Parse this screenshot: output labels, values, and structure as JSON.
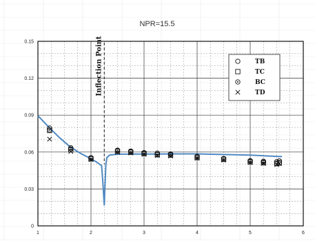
{
  "chart_data": {
    "type": "scatter",
    "title": "NPR=15.5",
    "xlim": [
      1,
      6
    ],
    "ylim": [
      0,
      0.15
    ],
    "x_ticks": [
      "1",
      "2",
      "3",
      "4",
      "5",
      "6"
    ],
    "y_ticks": [
      "0",
      "0.03",
      "0.06",
      "0.09",
      "0.12",
      "0.15"
    ],
    "grid": true,
    "legend_position": "top-right",
    "annotation": {
      "label": "Inflection Point",
      "x": 2.25
    },
    "series": [
      {
        "name": "TB",
        "marker": "circle-open",
        "x": [
          1.22,
          1.62,
          2.0,
          2.5,
          2.75,
          3.0,
          3.25,
          3.5,
          4.0,
          4.5,
          5.0,
          5.25,
          5.5,
          5.55
        ],
        "y": [
          0.0795,
          0.0635,
          0.0555,
          0.0615,
          0.0608,
          0.0595,
          0.0592,
          0.0585,
          0.0565,
          0.0548,
          0.053,
          0.0525,
          0.0522,
          0.0528
        ]
      },
      {
        "name": "TC",
        "marker": "square-open",
        "x": [
          1.22,
          1.62,
          2.0,
          2.5,
          2.75,
          3.0,
          3.25,
          3.5,
          4.0,
          4.5,
          5.0,
          5.25,
          5.5,
          5.55
        ],
        "y": [
          0.0775,
          0.0618,
          0.0545,
          0.0605,
          0.0598,
          0.0588,
          0.0578,
          0.0575,
          0.0555,
          0.054,
          0.052,
          0.0512,
          0.0508,
          0.0515
        ]
      },
      {
        "name": "BC",
        "marker": "circle-dot",
        "x": [
          1.22,
          1.62,
          2.0,
          2.5,
          2.75,
          3.0,
          3.25,
          3.5,
          4.0,
          4.5,
          5.0,
          5.25,
          5.5,
          5.55
        ],
        "y": [
          0.078,
          0.0625,
          0.0548,
          0.061,
          0.0603,
          0.059,
          0.0583,
          0.058,
          0.056,
          0.0545,
          0.0525,
          0.0518,
          0.0505,
          0.051
        ]
      },
      {
        "name": "TD",
        "marker": "x",
        "x": [
          1.22,
          1.62,
          2.0,
          2.5,
          2.75,
          3.0,
          3.25,
          3.5,
          4.0,
          4.5,
          5.0,
          5.25,
          5.5,
          5.55
        ],
        "y": [
          0.0705,
          0.0605,
          0.0538,
          0.0598,
          0.0592,
          0.0582,
          0.0572,
          0.0568,
          0.055,
          0.0535,
          0.0515,
          0.0508,
          0.0498,
          0.0505
        ]
      }
    ],
    "curve": {
      "color": "#4f89c2",
      "x": [
        1.0,
        1.2,
        1.4,
        1.6,
        1.8,
        2.0,
        2.1,
        2.2,
        2.22,
        2.25,
        2.26,
        2.28,
        2.3,
        2.35,
        2.4,
        2.5,
        2.75,
        3.0,
        3.25,
        3.5,
        4.0,
        4.5,
        5.0,
        5.25,
        5.5,
        5.6
      ],
      "y": [
        0.0895,
        0.0805,
        0.072,
        0.0645,
        0.059,
        0.0545,
        0.052,
        0.049,
        0.038,
        0.0165,
        0.028,
        0.05,
        0.0555,
        0.0575,
        0.0578,
        0.0582,
        0.0583,
        0.0584,
        0.0584,
        0.0585,
        0.0585,
        0.058,
        0.0575,
        0.057,
        0.0565,
        0.0563
      ]
    }
  }
}
